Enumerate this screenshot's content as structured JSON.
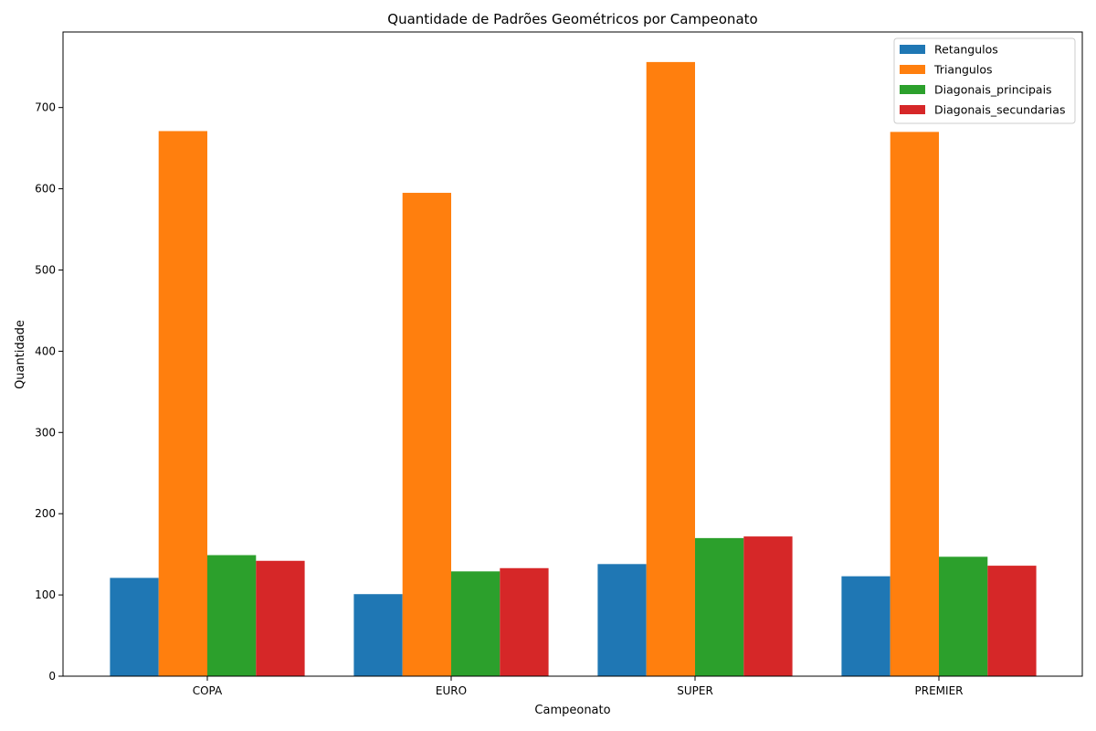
{
  "chart_data": {
    "type": "bar",
    "title": "Quantidade de Padrões Geométricos por Campeonato",
    "xlabel": "Campeonato",
    "ylabel": "Quantidade",
    "categories": [
      "COPA",
      "EURO",
      "SUPER",
      "PREMIER"
    ],
    "series": [
      {
        "name": "Retangulos",
        "color": "#1f77b4",
        "values": [
          121,
          101,
          138,
          123
        ]
      },
      {
        "name": "Triangulos",
        "color": "#ff7f0e",
        "values": [
          671,
          595,
          756,
          670
        ]
      },
      {
        "name": "Diagonais_principais",
        "color": "#2ca02c",
        "values": [
          149,
          129,
          170,
          147
        ]
      },
      {
        "name": "Diagonais_secundarias",
        "color": "#d62728",
        "values": [
          142,
          133,
          172,
          136
        ]
      }
    ],
    "ylim": [
      0,
      793
    ],
    "yticks": [
      0,
      100,
      200,
      300,
      400,
      500,
      600,
      700
    ],
    "grid": false,
    "legend_position": "top-right"
  }
}
